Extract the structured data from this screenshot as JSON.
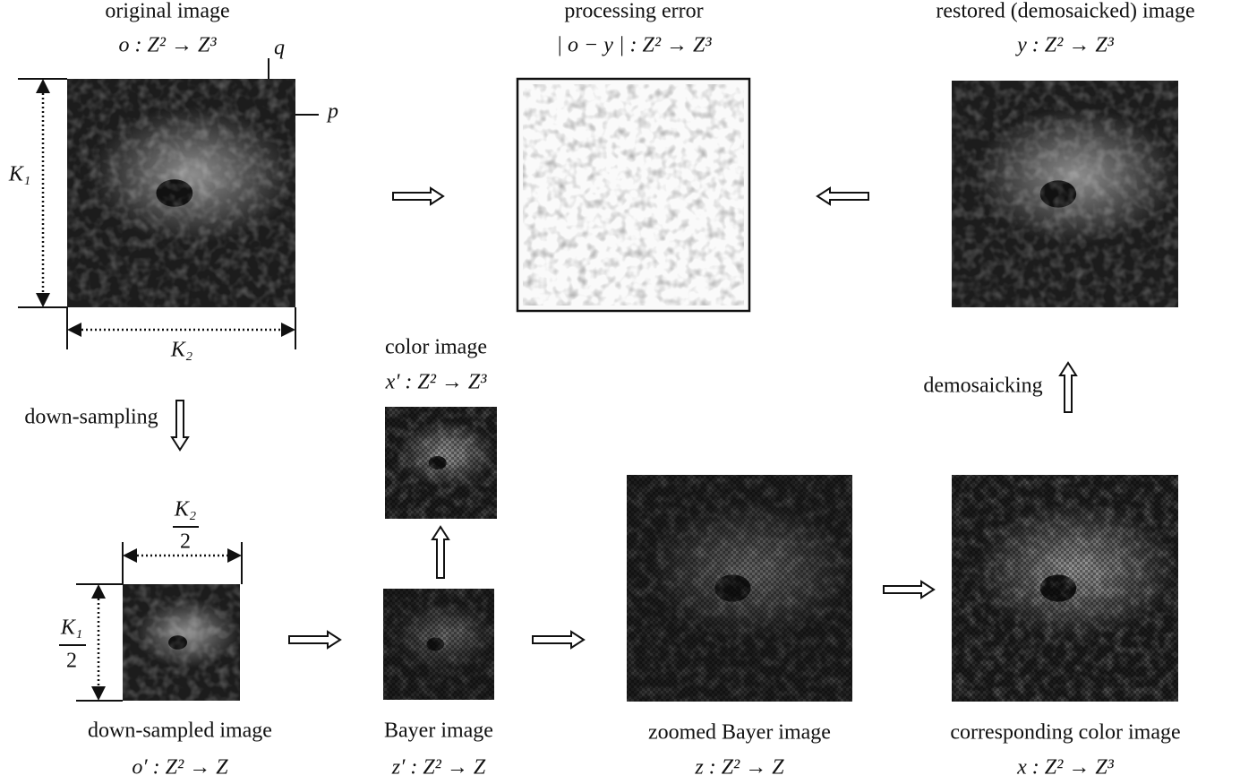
{
  "original": {
    "title": "original image",
    "formula": "o : Z² → Z³",
    "corner_q": "q",
    "corner_p": "p",
    "height_label": "K₁",
    "width_label": "K₂"
  },
  "error": {
    "title": "processing error",
    "formula": "| o − y | : Z² → Z³"
  },
  "restored": {
    "title": "restored (demosaicked) image",
    "formula": "y : Z² → Z³"
  },
  "color_small": {
    "title": "color image",
    "formula": "x' : Z² → Z³"
  },
  "downsampling": {
    "label": "down-sampling"
  },
  "demosaicking": {
    "label": "demosaicking"
  },
  "downsampled": {
    "title": "down-sampled image",
    "formula": "o′ : Z² → Z",
    "width_label": {
      "numerator": "K₂",
      "denominator": "2"
    },
    "height_label": {
      "numerator": "K₁",
      "denominator": "2"
    }
  },
  "bayer": {
    "title": "Bayer image",
    "formula": "z′ : Z² → Z"
  },
  "zoomed": {
    "title": "zoomed Bayer image",
    "formula": "z : Z² → Z"
  },
  "corresponding": {
    "title": "corresponding color image",
    "formula": "x : Z² → Z³"
  }
}
